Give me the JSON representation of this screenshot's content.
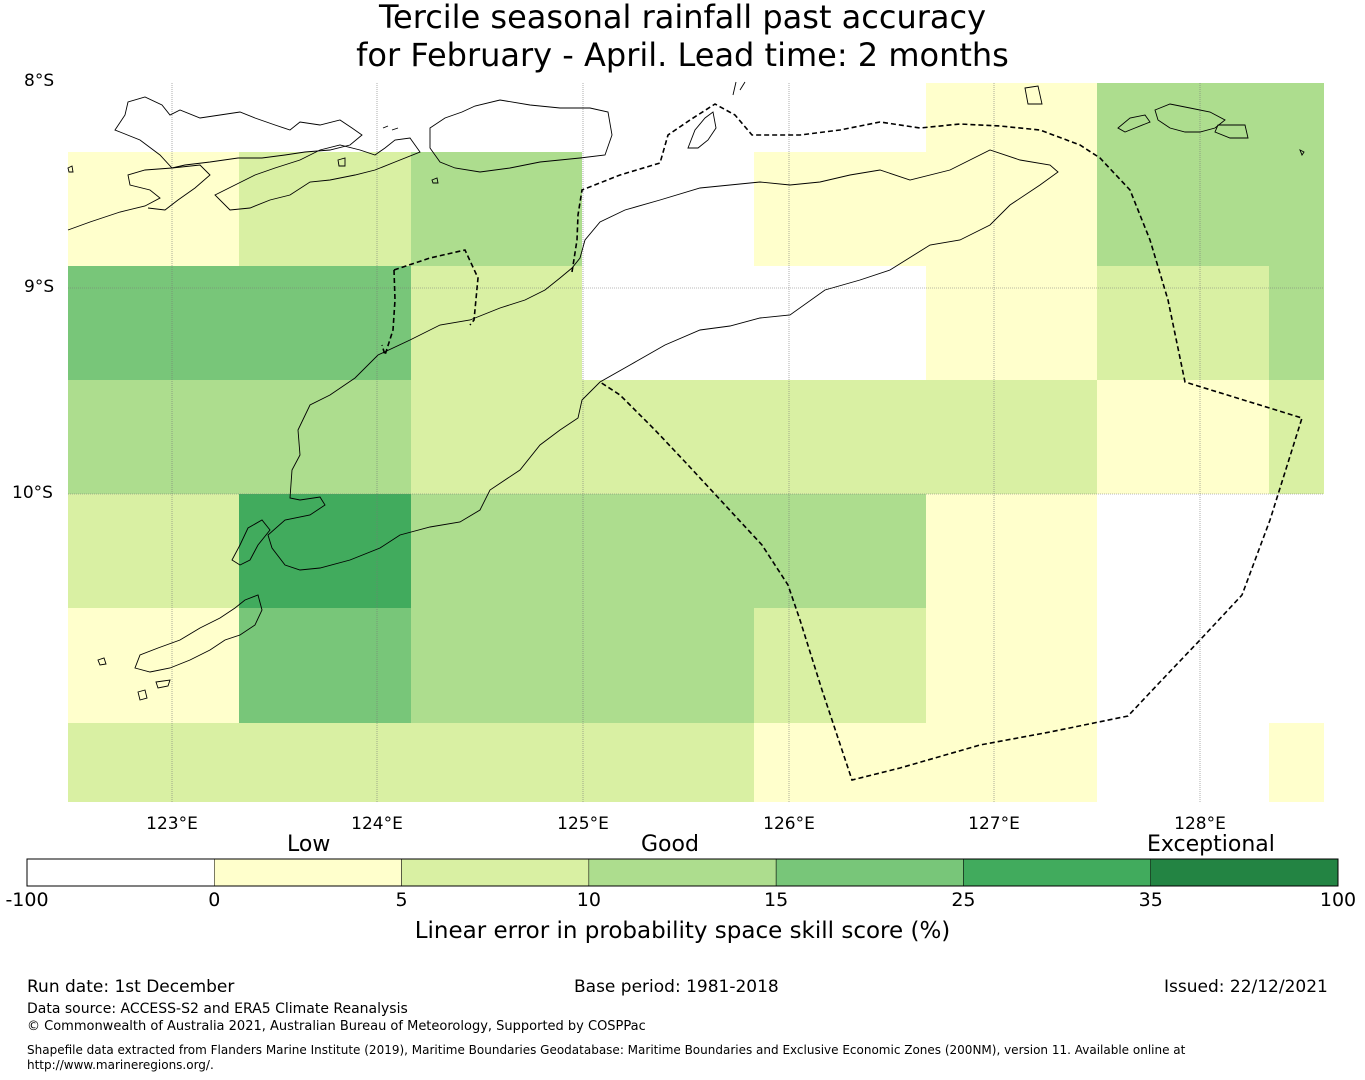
{
  "title": {
    "line1": "Tercile seasonal rainfall past accuracy",
    "line2": "for February - April. Lead time: 2 months"
  },
  "map": {
    "lat_labels": [
      "8°S",
      "9°S",
      "10°S"
    ],
    "lon_labels": [
      "123°E",
      "124°E",
      "125°E",
      "126°E",
      "127°E",
      "128°E"
    ]
  },
  "legend": {
    "categories": [
      "Low",
      "Good",
      "Exceptional"
    ],
    "ticks": [
      "-100",
      "0",
      "5",
      "10",
      "15",
      "25",
      "35",
      "100"
    ],
    "colors": [
      "#ffffff",
      "#ffffcc",
      "#d9f0a3",
      "#addd8e",
      "#78c679",
      "#41ab5d",
      "#238443"
    ],
    "title": "Linear error in probability space skill score (%)"
  },
  "footer": {
    "run_date": "Run date: 1st December",
    "base_period": "Base period: 1981-2018",
    "issued": "Issued: 22/12/2021",
    "data_source": "Data source: ACCESS-S2 and ERA5 Climate Reanalysis",
    "copyright": "© Commonwealth of Australia 2021, Australian Bureau of Meteorology, Supported by COSPPac",
    "shapefile": "Shapefile data extracted from Flanders Marine Institute (2019), Maritime Boundaries Geodatabase: Maritime Boundaries and Exclusive Economic Zones (200NM), version 11. Available online at http://www.marineregions.org/."
  }
}
